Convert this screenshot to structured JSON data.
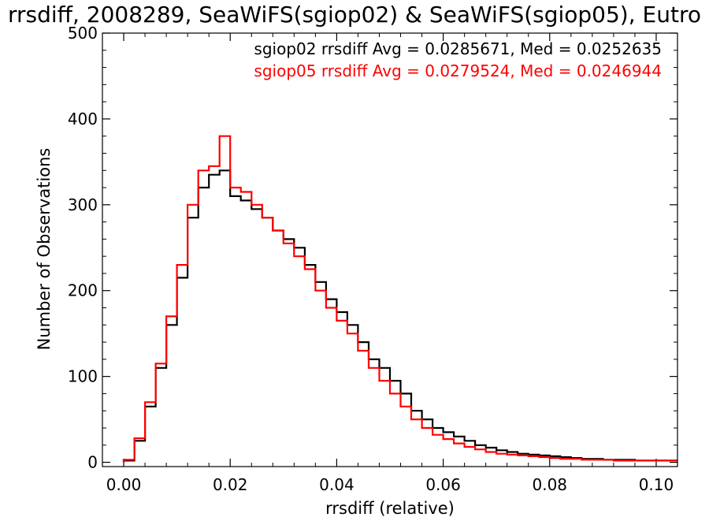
{
  "chart_data": {
    "type": "line",
    "title": "rrsdiff, 2008289, SeaWiFS(sgiop02) & SeaWiFS(sgiop05), Eutro",
    "xlabel": "rrsdiff (relative)",
    "ylabel": "Number of Observations",
    "xlim": [
      -0.004,
      0.104
    ],
    "ylim": [
      -5,
      500
    ],
    "x_ticks": [
      "0.00",
      "0.02",
      "0.04",
      "0.06",
      "0.08",
      "0.10"
    ],
    "y_ticks": [
      "0",
      "100",
      "200",
      "300",
      "400",
      "500"
    ],
    "x_tick_values": [
      0.0,
      0.02,
      0.04,
      0.06,
      0.08,
      0.1
    ],
    "y_tick_values": [
      0,
      100,
      200,
      300,
      400,
      500
    ],
    "stats_lines": [
      {
        "text": "sgiop02 rrsdiff Avg = 0.0285671, Med = 0.0252635",
        "color": "#000000"
      },
      {
        "text": "sgiop05 rrsdiff Avg = 0.0279524, Med = 0.0246944",
        "color": "#ff0000"
      }
    ],
    "series": [
      {
        "name": "sgiop02",
        "color": "#000000",
        "x": [
          0.0,
          0.002,
          0.004,
          0.006,
          0.008,
          0.01,
          0.012,
          0.014,
          0.016,
          0.018,
          0.02,
          0.022,
          0.024,
          0.026,
          0.028,
          0.03,
          0.032,
          0.034,
          0.036,
          0.038,
          0.04,
          0.042,
          0.044,
          0.046,
          0.048,
          0.05,
          0.052,
          0.054,
          0.056,
          0.058,
          0.06,
          0.062,
          0.064,
          0.066,
          0.068,
          0.07,
          0.072,
          0.074,
          0.076,
          0.078,
          0.08,
          0.082,
          0.084,
          0.086,
          0.088,
          0.09,
          0.092,
          0.094,
          0.096,
          0.098,
          0.1,
          0.102
        ],
        "y": [
          2,
          25,
          65,
          110,
          160,
          215,
          285,
          320,
          335,
          340,
          310,
          305,
          295,
          285,
          270,
          260,
          250,
          230,
          210,
          190,
          175,
          160,
          140,
          120,
          110,
          95,
          80,
          60,
          50,
          40,
          35,
          30,
          25,
          20,
          17,
          14,
          12,
          10,
          9,
          8,
          7,
          6,
          5,
          4,
          4,
          3,
          3,
          3,
          2,
          2,
          2,
          2
        ]
      },
      {
        "name": "sgiop05",
        "color": "#ff0000",
        "x": [
          0.0,
          0.002,
          0.004,
          0.006,
          0.008,
          0.01,
          0.012,
          0.014,
          0.016,
          0.018,
          0.02,
          0.022,
          0.024,
          0.026,
          0.028,
          0.03,
          0.032,
          0.034,
          0.036,
          0.038,
          0.04,
          0.042,
          0.044,
          0.046,
          0.048,
          0.05,
          0.052,
          0.054,
          0.056,
          0.058,
          0.06,
          0.062,
          0.064,
          0.066,
          0.068,
          0.07,
          0.072,
          0.074,
          0.076,
          0.078,
          0.08,
          0.082,
          0.084,
          0.086,
          0.088,
          0.09,
          0.092,
          0.094,
          0.096,
          0.098,
          0.1,
          0.102
        ],
        "y": [
          3,
          28,
          70,
          115,
          170,
          230,
          300,
          340,
          345,
          380,
          320,
          315,
          300,
          285,
          270,
          255,
          240,
          225,
          200,
          180,
          165,
          150,
          130,
          110,
          95,
          80,
          65,
          50,
          40,
          32,
          27,
          22,
          18,
          15,
          12,
          10,
          9,
          8,
          7,
          6,
          5,
          4,
          4,
          3,
          3,
          3,
          2,
          2,
          2,
          2,
          2,
          2
        ]
      }
    ]
  }
}
